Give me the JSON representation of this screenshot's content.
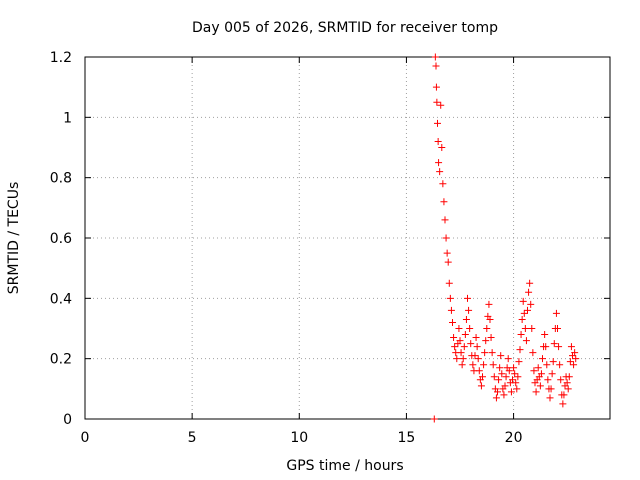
{
  "chart_data": {
    "type": "scatter",
    "title": "Day 005 of 2026, SRMTID for receiver tomp",
    "xlabel": "GPS time / hours",
    "ylabel": "SRMTID / TECUs",
    "xlim": [
      0,
      24.5
    ],
    "ylim": [
      0,
      1.2
    ],
    "x_ticks": [
      0,
      5,
      10,
      15,
      20
    ],
    "x_tick_labels": [
      "0",
      "5",
      "10",
      "15",
      "20"
    ],
    "y_ticks": [
      0,
      0.2,
      0.4,
      0.6,
      0.8,
      1.0,
      1.2
    ],
    "y_tick_labels": [
      "0",
      "0.2",
      "0.4",
      "0.6",
      "0.8",
      "1",
      "1.2"
    ],
    "grid": true,
    "marker": "+",
    "colors": {
      "series": "#ff0000",
      "grid": "#a0a0a0",
      "axis": "#000000"
    },
    "series": [
      {
        "name": "SRMTID",
        "points": [
          [
            16.3,
            0.0
          ],
          [
            16.35,
            1.2
          ],
          [
            16.38,
            1.17
          ],
          [
            16.4,
            1.1
          ],
          [
            16.42,
            1.05
          ],
          [
            16.45,
            0.98
          ],
          [
            16.48,
            0.92
          ],
          [
            16.5,
            0.85
          ],
          [
            16.55,
            0.82
          ],
          [
            16.6,
            1.04
          ],
          [
            16.65,
            0.9
          ],
          [
            16.7,
            0.78
          ],
          [
            16.75,
            0.72
          ],
          [
            16.8,
            0.66
          ],
          [
            16.85,
            0.6
          ],
          [
            16.9,
            0.55
          ],
          [
            16.95,
            0.52
          ],
          [
            17.0,
            0.45
          ],
          [
            17.05,
            0.4
          ],
          [
            17.1,
            0.36
          ],
          [
            17.15,
            0.32
          ],
          [
            17.2,
            0.27
          ],
          [
            17.25,
            0.24
          ],
          [
            17.3,
            0.22
          ],
          [
            17.35,
            0.2
          ],
          [
            17.4,
            0.25
          ],
          [
            17.45,
            0.3
          ],
          [
            17.5,
            0.26
          ],
          [
            17.55,
            0.22
          ],
          [
            17.6,
            0.18
          ],
          [
            17.65,
            0.2
          ],
          [
            17.7,
            0.24
          ],
          [
            17.75,
            0.28
          ],
          [
            17.8,
            0.33
          ],
          [
            17.85,
            0.4
          ],
          [
            17.9,
            0.36
          ],
          [
            17.95,
            0.3
          ],
          [
            18.0,
            0.25
          ],
          [
            18.05,
            0.21
          ],
          [
            18.1,
            0.18
          ],
          [
            18.15,
            0.16
          ],
          [
            18.2,
            0.21
          ],
          [
            18.25,
            0.27
          ],
          [
            18.3,
            0.24
          ],
          [
            18.35,
            0.2
          ],
          [
            18.4,
            0.16
          ],
          [
            18.45,
            0.13
          ],
          [
            18.5,
            0.11
          ],
          [
            18.55,
            0.14
          ],
          [
            18.6,
            0.18
          ],
          [
            18.65,
            0.22
          ],
          [
            18.7,
            0.26
          ],
          [
            18.75,
            0.3
          ],
          [
            18.8,
            0.34
          ],
          [
            18.85,
            0.38
          ],
          [
            18.9,
            0.33
          ],
          [
            18.95,
            0.27
          ],
          [
            19.0,
            0.22
          ],
          [
            19.05,
            0.18
          ],
          [
            19.1,
            0.14
          ],
          [
            19.15,
            0.1
          ],
          [
            19.2,
            0.07
          ],
          [
            19.25,
            0.09
          ],
          [
            19.3,
            0.13
          ],
          [
            19.35,
            0.17
          ],
          [
            19.4,
            0.21
          ],
          [
            19.45,
            0.15
          ],
          [
            19.5,
            0.1
          ],
          [
            19.55,
            0.08
          ],
          [
            19.6,
            0.11
          ],
          [
            19.65,
            0.14
          ],
          [
            19.7,
            0.17
          ],
          [
            19.75,
            0.2
          ],
          [
            19.8,
            0.16
          ],
          [
            19.85,
            0.12
          ],
          [
            19.9,
            0.09
          ],
          [
            19.95,
            0.13
          ],
          [
            20.0,
            0.17
          ],
          [
            20.05,
            0.15
          ],
          [
            20.1,
            0.12
          ],
          [
            20.15,
            0.1
          ],
          [
            20.2,
            0.14
          ],
          [
            20.25,
            0.19
          ],
          [
            20.3,
            0.23
          ],
          [
            20.35,
            0.28
          ],
          [
            20.4,
            0.33
          ],
          [
            20.45,
            0.39
          ],
          [
            20.5,
            0.35
          ],
          [
            20.55,
            0.3
          ],
          [
            20.6,
            0.26
          ],
          [
            20.65,
            0.36
          ],
          [
            20.7,
            0.42
          ],
          [
            20.75,
            0.45
          ],
          [
            20.8,
            0.38
          ],
          [
            20.85,
            0.3
          ],
          [
            20.9,
            0.22
          ],
          [
            20.95,
            0.16
          ],
          [
            21.0,
            0.12
          ],
          [
            21.05,
            0.09
          ],
          [
            21.1,
            0.13
          ],
          [
            21.15,
            0.17
          ],
          [
            21.2,
            0.14
          ],
          [
            21.25,
            0.11
          ],
          [
            21.3,
            0.15
          ],
          [
            21.35,
            0.2
          ],
          [
            21.4,
            0.24
          ],
          [
            21.45,
            0.28
          ],
          [
            21.5,
            0.24
          ],
          [
            21.55,
            0.18
          ],
          [
            21.6,
            0.13
          ],
          [
            21.65,
            0.1
          ],
          [
            21.7,
            0.07
          ],
          [
            21.75,
            0.1
          ],
          [
            21.8,
            0.15
          ],
          [
            21.85,
            0.19
          ],
          [
            21.9,
            0.25
          ],
          [
            21.95,
            0.3
          ],
          [
            22.0,
            0.35
          ],
          [
            22.05,
            0.3
          ],
          [
            22.1,
            0.24
          ],
          [
            22.15,
            0.18
          ],
          [
            22.2,
            0.13
          ],
          [
            22.25,
            0.08
          ],
          [
            22.3,
            0.05
          ],
          [
            22.35,
            0.08
          ],
          [
            22.4,
            0.11
          ],
          [
            22.45,
            0.14
          ],
          [
            22.5,
            0.12
          ],
          [
            22.55,
            0.1
          ],
          [
            22.6,
            0.14
          ],
          [
            22.65,
            0.19
          ],
          [
            22.7,
            0.24
          ],
          [
            22.75,
            0.21
          ],
          [
            22.8,
            0.18
          ],
          [
            22.85,
            0.22
          ],
          [
            22.9,
            0.2
          ]
        ]
      }
    ]
  }
}
